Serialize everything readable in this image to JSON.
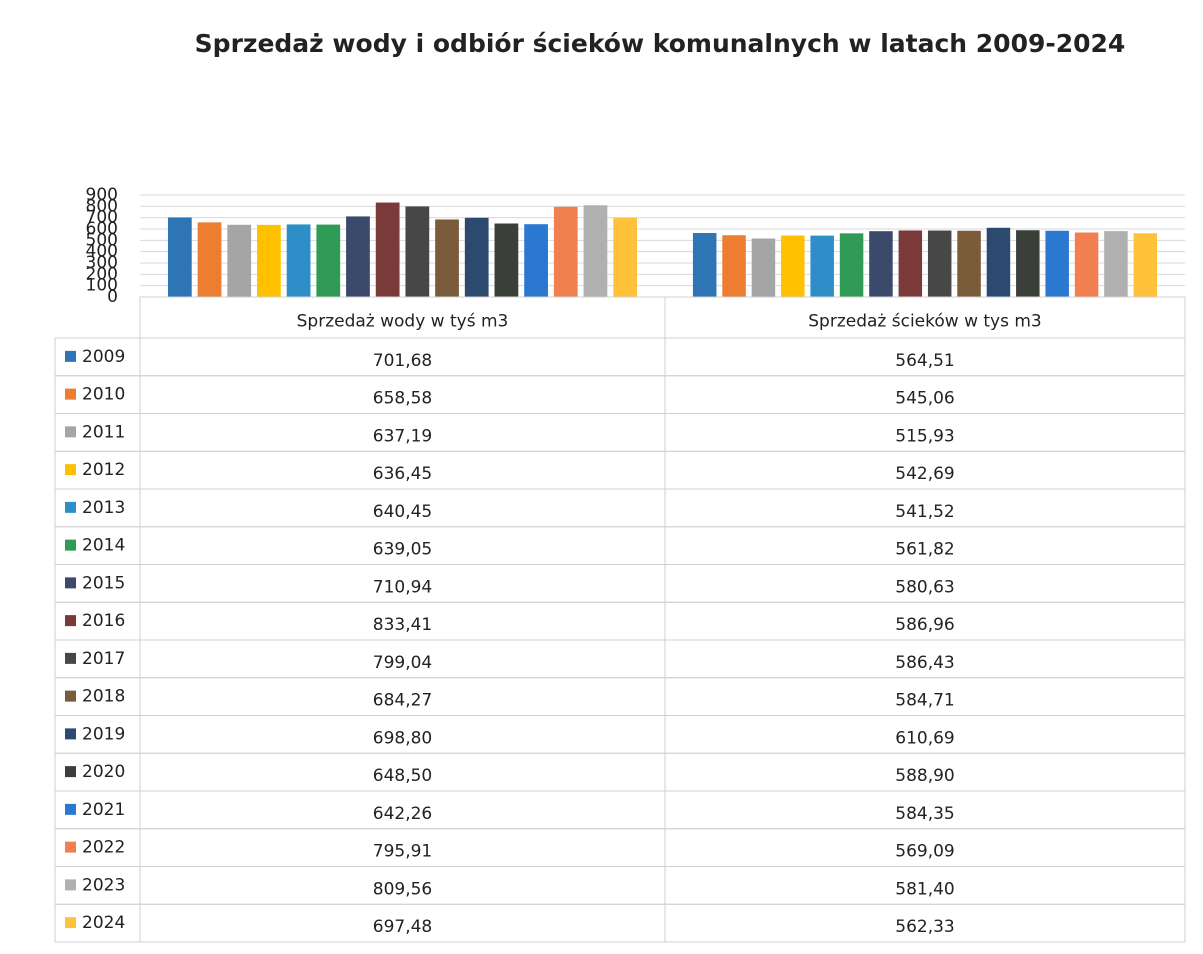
{
  "chart_data": {
    "type": "bar",
    "title": "Sprzedaż wody i odbiór ścieków komunalnych w latach 2009-2024",
    "categories": [
      "Sprzedaż wody w tyś m3",
      "Sprzedaż ścieków w tys m3"
    ],
    "ylim": [
      0,
      900
    ],
    "yticks": [
      0,
      100,
      200,
      300,
      400,
      500,
      600,
      700,
      800,
      900
    ],
    "grid": true,
    "series": [
      {
        "name": "2009",
        "color": "#2e75b6",
        "values": [
          701.68,
          564.51
        ],
        "value_labels": [
          "701,68",
          "564,51"
        ]
      },
      {
        "name": "2010",
        "color": "#ed7d31",
        "values": [
          658.58,
          545.06
        ],
        "value_labels": [
          "658,58",
          "545,06"
        ]
      },
      {
        "name": "2011",
        "color": "#a5a5a5",
        "values": [
          637.19,
          515.93
        ],
        "value_labels": [
          "637,19",
          "515,93"
        ]
      },
      {
        "name": "2012",
        "color": "#ffc000",
        "values": [
          636.45,
          542.69
        ],
        "value_labels": [
          "636,45",
          "542,69"
        ]
      },
      {
        "name": "2013",
        "color": "#2e8fc8",
        "values": [
          640.45,
          541.52
        ],
        "value_labels": [
          "640,45",
          "541,52"
        ]
      },
      {
        "name": "2014",
        "color": "#2f9b57",
        "values": [
          639.05,
          561.82
        ],
        "value_labels": [
          "639,05",
          "561,82"
        ]
      },
      {
        "name": "2015",
        "color": "#3b4a6b",
        "values": [
          710.94,
          580.63
        ],
        "value_labels": [
          "710,94",
          "580,63"
        ]
      },
      {
        "name": "2016",
        "color": "#7b3a3a",
        "values": [
          833.41,
          586.96
        ],
        "value_labels": [
          "833,41",
          "586,96"
        ]
      },
      {
        "name": "2017",
        "color": "#474747",
        "values": [
          799.04,
          586.43
        ],
        "value_labels": [
          "799,04",
          "586,43"
        ]
      },
      {
        "name": "2018",
        "color": "#7a5c3a",
        "values": [
          684.27,
          584.71
        ],
        "value_labels": [
          "684,27",
          "584,71"
        ]
      },
      {
        "name": "2019",
        "color": "#2c4a70",
        "values": [
          698.8,
          610.69
        ],
        "value_labels": [
          "698,80",
          "610,69"
        ]
      },
      {
        "name": "2020",
        "color": "#3a3f3a",
        "values": [
          648.5,
          588.9
        ],
        "value_labels": [
          "648,50",
          "588,90"
        ]
      },
      {
        "name": "2021",
        "color": "#2a78d0",
        "values": [
          642.26,
          584.35
        ],
        "value_labels": [
          "642,26",
          "584,35"
        ]
      },
      {
        "name": "2022",
        "color": "#f08050",
        "values": [
          795.91,
          569.09
        ],
        "value_labels": [
          "795,91",
          "569,09"
        ]
      },
      {
        "name": "2023",
        "color": "#b0b0b0",
        "values": [
          809.56,
          581.4
        ],
        "value_labels": [
          "809,56",
          "581,40"
        ]
      },
      {
        "name": "2024",
        "color": "#ffc23a",
        "values": [
          697.48,
          562.33
        ],
        "value_labels": [
          "697,48",
          "562,33"
        ]
      }
    ]
  }
}
